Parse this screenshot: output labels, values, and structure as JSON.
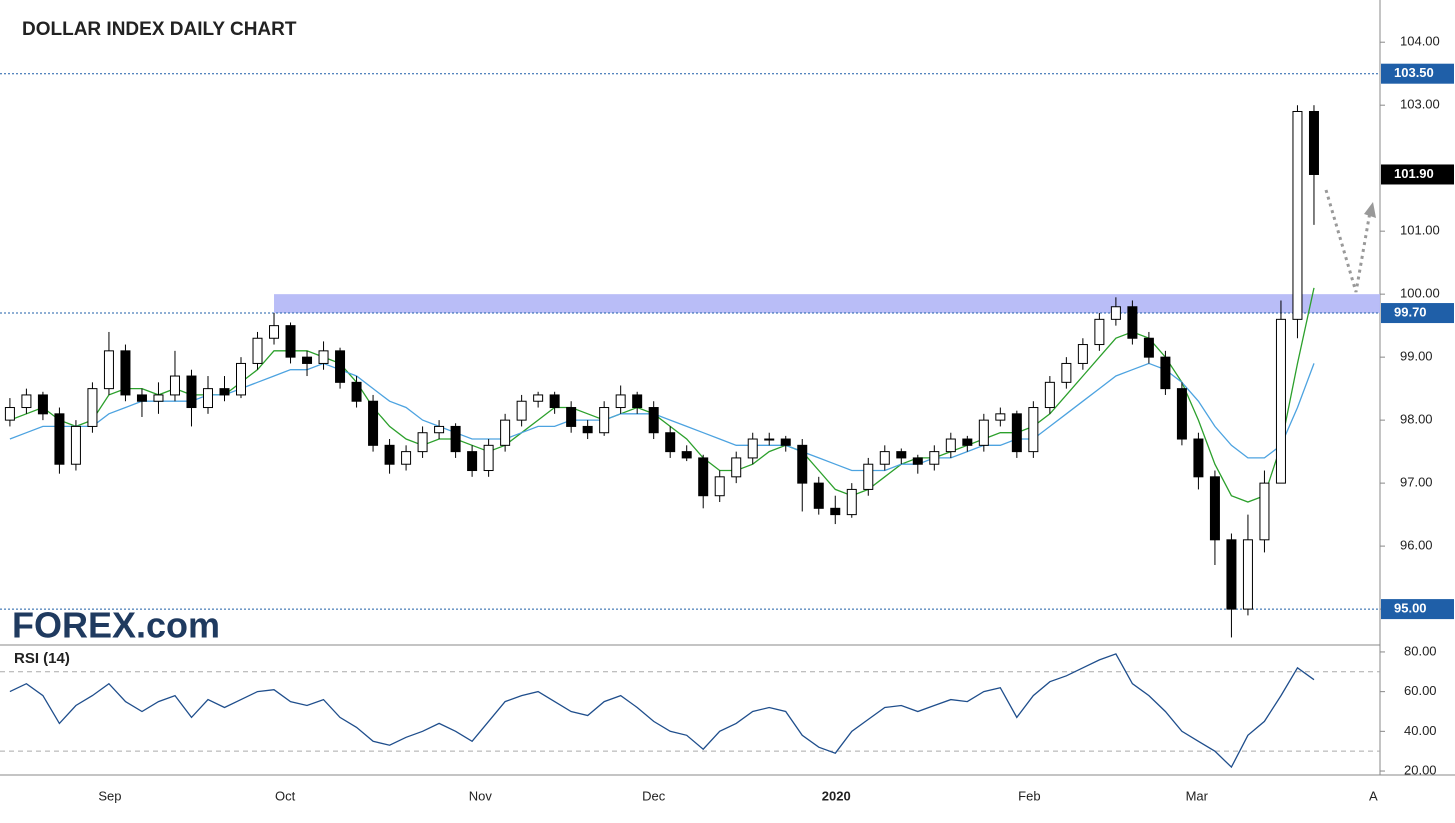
{
  "title": "DOLLAR INDEX DAILY CHART",
  "logo": "FOREX.com",
  "chart_data": [
    {
      "type": "candlestick",
      "x": [
        0,
        1,
        2,
        3,
        4,
        5,
        6,
        7,
        8,
        9,
        10,
        11,
        12,
        13,
        14,
        15,
        16,
        17,
        18,
        19,
        20,
        21,
        22,
        23,
        24,
        25,
        26,
        27,
        28,
        29,
        30,
        31,
        32,
        33,
        34,
        35,
        36,
        37,
        38,
        39,
        40,
        41,
        42,
        43,
        44,
        45,
        46,
        47,
        48,
        49,
        50,
        51,
        52,
        53,
        54,
        55,
        56,
        57,
        58,
        59,
        60,
        61,
        62,
        63,
        64,
        65,
        66,
        67,
        68,
        69,
        70,
        71,
        72,
        73,
        74,
        75,
        76,
        77,
        78,
        79
      ],
      "candles": [
        [
          98.0,
          98.35,
          97.9,
          98.2
        ],
        [
          98.2,
          98.5,
          98.1,
          98.4
        ],
        [
          98.4,
          98.45,
          98.0,
          98.1
        ],
        [
          98.1,
          98.2,
          97.15,
          97.3
        ],
        [
          97.3,
          98.0,
          97.2,
          97.9
        ],
        [
          97.9,
          98.6,
          97.8,
          98.5
        ],
        [
          98.5,
          99.4,
          98.4,
          99.1
        ],
        [
          99.1,
          99.2,
          98.3,
          98.4
        ],
        [
          98.4,
          98.5,
          98.05,
          98.3
        ],
        [
          98.3,
          98.6,
          98.1,
          98.4
        ],
        [
          98.4,
          99.1,
          98.3,
          98.7
        ],
        [
          98.7,
          98.8,
          97.9,
          98.2
        ],
        [
          98.2,
          98.7,
          98.1,
          98.5
        ],
        [
          98.5,
          98.7,
          98.3,
          98.4
        ],
        [
          98.4,
          99.0,
          98.35,
          98.9
        ],
        [
          98.9,
          99.4,
          98.8,
          99.3
        ],
        [
          99.3,
          99.7,
          99.2,
          99.5
        ],
        [
          99.5,
          99.55,
          98.9,
          99.0
        ],
        [
          99.0,
          99.1,
          98.7,
          98.9
        ],
        [
          98.9,
          99.25,
          98.8,
          99.1
        ],
        [
          99.1,
          99.15,
          98.5,
          98.6
        ],
        [
          98.6,
          98.7,
          98.2,
          98.3
        ],
        [
          98.3,
          98.4,
          97.5,
          97.6
        ],
        [
          97.6,
          97.7,
          97.15,
          97.3
        ],
        [
          97.3,
          97.6,
          97.2,
          97.5
        ],
        [
          97.5,
          97.9,
          97.4,
          97.8
        ],
        [
          97.8,
          98.0,
          97.7,
          97.9
        ],
        [
          97.9,
          97.95,
          97.4,
          97.5
        ],
        [
          97.5,
          97.6,
          97.1,
          97.2
        ],
        [
          97.2,
          97.7,
          97.1,
          97.6
        ],
        [
          97.6,
          98.1,
          97.5,
          98.0
        ],
        [
          98.0,
          98.4,
          97.9,
          98.3
        ],
        [
          98.3,
          98.45,
          98.2,
          98.4
        ],
        [
          98.4,
          98.45,
          98.1,
          98.2
        ],
        [
          98.2,
          98.3,
          97.8,
          97.9
        ],
        [
          97.9,
          98.0,
          97.7,
          97.8
        ],
        [
          97.8,
          98.3,
          97.75,
          98.2
        ],
        [
          98.2,
          98.55,
          98.1,
          98.4
        ],
        [
          98.4,
          98.45,
          98.1,
          98.2
        ],
        [
          98.2,
          98.3,
          97.7,
          97.8
        ],
        [
          97.8,
          97.9,
          97.4,
          97.5
        ],
        [
          97.5,
          97.6,
          97.35,
          97.4
        ],
        [
          97.4,
          97.45,
          96.6,
          96.8
        ],
        [
          96.8,
          97.2,
          96.7,
          97.1
        ],
        [
          97.1,
          97.5,
          97.0,
          97.4
        ],
        [
          97.4,
          97.8,
          97.3,
          97.7
        ],
        [
          97.7,
          97.8,
          97.6,
          97.7
        ],
        [
          97.7,
          97.75,
          97.5,
          97.6
        ],
        [
          97.6,
          97.7,
          96.55,
          97.0
        ],
        [
          97.0,
          97.1,
          96.5,
          96.6
        ],
        [
          96.6,
          96.8,
          96.35,
          96.5
        ],
        [
          96.5,
          97.0,
          96.45,
          96.9
        ],
        [
          96.9,
          97.4,
          96.8,
          97.3
        ],
        [
          97.3,
          97.6,
          97.2,
          97.5
        ],
        [
          97.5,
          97.55,
          97.3,
          97.4
        ],
        [
          97.4,
          97.45,
          97.15,
          97.3
        ],
        [
          97.3,
          97.6,
          97.2,
          97.5
        ],
        [
          97.5,
          97.8,
          97.4,
          97.7
        ],
        [
          97.7,
          97.75,
          97.5,
          97.6
        ],
        [
          97.6,
          98.1,
          97.5,
          98.0
        ],
        [
          98.0,
          98.2,
          97.9,
          98.1
        ],
        [
          98.1,
          98.15,
          97.4,
          97.5
        ],
        [
          97.5,
          98.3,
          97.4,
          98.2
        ],
        [
          98.2,
          98.7,
          98.1,
          98.6
        ],
        [
          98.6,
          99.0,
          98.5,
          98.9
        ],
        [
          98.9,
          99.3,
          98.8,
          99.2
        ],
        [
          99.2,
          99.7,
          99.1,
          99.6
        ],
        [
          99.6,
          99.95,
          99.5,
          99.8
        ],
        [
          99.8,
          99.9,
          99.2,
          99.3
        ],
        [
          99.3,
          99.4,
          98.9,
          99.0
        ],
        [
          99.0,
          99.1,
          98.4,
          98.5
        ],
        [
          98.5,
          98.6,
          97.6,
          97.7
        ],
        [
          97.7,
          97.8,
          96.9,
          97.1
        ],
        [
          97.1,
          97.2,
          95.7,
          96.1
        ],
        [
          96.1,
          96.2,
          94.55,
          95.0
        ],
        [
          95.0,
          96.5,
          94.9,
          96.1
        ],
        [
          96.1,
          97.2,
          95.9,
          97.0
        ],
        [
          97.0,
          99.9,
          97.0,
          99.6
        ],
        [
          99.6,
          103.0,
          99.3,
          102.9
        ],
        [
          102.9,
          103.0,
          101.1,
          101.9
        ]
      ],
      "series": [
        {
          "name": "MA fast",
          "color": "#2ca02c",
          "values": [
            98.0,
            98.1,
            98.2,
            98.0,
            97.9,
            98.0,
            98.4,
            98.5,
            98.5,
            98.4,
            98.5,
            98.4,
            98.4,
            98.4,
            98.6,
            98.8,
            99.1,
            99.1,
            99.1,
            99.0,
            98.9,
            98.6,
            98.2,
            97.9,
            97.7,
            97.6,
            97.7,
            97.7,
            97.6,
            97.5,
            97.6,
            97.8,
            98.0,
            98.2,
            98.2,
            98.1,
            98.0,
            98.1,
            98.2,
            98.1,
            97.9,
            97.7,
            97.4,
            97.2,
            97.2,
            97.3,
            97.5,
            97.6,
            97.5,
            97.2,
            96.9,
            96.8,
            96.9,
            97.1,
            97.3,
            97.4,
            97.4,
            97.5,
            97.6,
            97.7,
            97.8,
            97.8,
            97.9,
            98.1,
            98.4,
            98.7,
            99.0,
            99.3,
            99.4,
            99.3,
            99.0,
            98.6,
            98.0,
            97.3,
            96.8,
            96.7,
            96.8,
            97.6,
            98.9,
            100.1
          ]
        },
        {
          "name": "MA slow",
          "color": "#4da3e0",
          "values": [
            97.7,
            97.8,
            97.9,
            97.9,
            97.9,
            97.9,
            98.1,
            98.2,
            98.3,
            98.3,
            98.3,
            98.3,
            98.4,
            98.4,
            98.5,
            98.6,
            98.7,
            98.8,
            98.8,
            98.9,
            98.8,
            98.7,
            98.5,
            98.3,
            98.2,
            98.0,
            97.9,
            97.8,
            97.7,
            97.7,
            97.7,
            97.8,
            97.9,
            97.9,
            98.0,
            98.0,
            98.0,
            98.1,
            98.1,
            98.1,
            98.0,
            97.9,
            97.8,
            97.7,
            97.6,
            97.6,
            97.6,
            97.6,
            97.5,
            97.4,
            97.3,
            97.2,
            97.2,
            97.2,
            97.3,
            97.3,
            97.4,
            97.4,
            97.5,
            97.6,
            97.6,
            97.7,
            97.7,
            97.9,
            98.1,
            98.3,
            98.5,
            98.7,
            98.8,
            98.9,
            98.8,
            98.6,
            98.3,
            97.9,
            97.6,
            97.4,
            97.4,
            97.6,
            98.2,
            98.9
          ]
        }
      ],
      "xlim": [
        -0.6,
        83
      ],
      "xticks": [
        {
          "value": 6.06,
          "label": "Sep"
        },
        {
          "value": 16.67,
          "label": "Oct"
        },
        {
          "value": 28.5,
          "label": "Nov"
        },
        {
          "value": 39.0,
          "label": "Dec"
        },
        {
          "value": 50.06,
          "label": "2020"
        },
        {
          "value": 61.76,
          "label": "Feb"
        },
        {
          "value": 71.9,
          "label": "Mar"
        },
        {
          "value": 82.6,
          "label": "A"
        }
      ],
      "ylim": [
        94.43,
        104.67
      ],
      "yticks": [
        {
          "value": 95,
          "label": "95.00"
        },
        {
          "value": 96,
          "label": "96.00"
        },
        {
          "value": 97,
          "label": "97.00"
        },
        {
          "value": 98,
          "label": "98.00"
        },
        {
          "value": 99,
          "label": "99.00"
        },
        {
          "value": 100,
          "label": "100.00"
        },
        {
          "value": 101,
          "label": "101.00"
        },
        {
          "value": 103,
          "label": "103.00"
        },
        {
          "value": 104,
          "label": "104.00"
        }
      ],
      "levels": [
        {
          "value": 103.5,
          "label": "103.50",
          "color": "#1f5fa8"
        },
        {
          "value": 99.7,
          "label": "99.70",
          "color": "#1f5fa8"
        },
        {
          "value": 95,
          "label": "95.00",
          "color": "#1f5fa8"
        },
        {
          "value": 101.9,
          "label": "101.90",
          "color": "#000000"
        }
      ],
      "zone": {
        "x": 16,
        "ylim": [
          99.7,
          100.0
        ],
        "color": "#b5b9f7"
      }
    },
    {
      "type": "line",
      "title": "RSI (14)",
      "series": [
        {
          "name": "RSI",
          "color": "#1f4e8c",
          "values": [
            60,
            64,
            58,
            44,
            53,
            58,
            64,
            55,
            50,
            55,
            58,
            47,
            56,
            52,
            56,
            60,
            61,
            55,
            53,
            56,
            47,
            42,
            35,
            33,
            37,
            40,
            44,
            40,
            35,
            45,
            55,
            58,
            60,
            55,
            50,
            48,
            55,
            58,
            52,
            45,
            40,
            38,
            31,
            40,
            44,
            50,
            52,
            50,
            38,
            32,
            29,
            40,
            46,
            52,
            53,
            50,
            53,
            56,
            55,
            60,
            62,
            47,
            58,
            65,
            68,
            72,
            76,
            79,
            64,
            58,
            50,
            40,
            35,
            30,
            22,
            38,
            45,
            58,
            72,
            66
          ]
        }
      ],
      "ylim": [
        18,
        83.5
      ],
      "yticks": [
        {
          "value": 20,
          "label": "20.00"
        },
        {
          "value": 40,
          "label": "40.00"
        },
        {
          "value": 60,
          "label": "60.00"
        },
        {
          "value": 80,
          "label": "80.00"
        }
      ],
      "guides": [
        70,
        30
      ]
    }
  ]
}
